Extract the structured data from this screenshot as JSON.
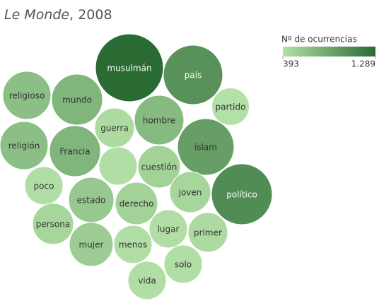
{
  "chart_data": {
    "type": "bubble",
    "title": [
      "Le Monde",
      ", 2008"
    ],
    "legend_title": "Nº de ocurrencias",
    "color_scale": [
      "#b3e0a6",
      "#2a6b34"
    ],
    "colorticks": [
      393,
      {
        "value": 1289,
        "label": "1.289"
      }
    ],
    "categories": [
      "musulmán",
      "país",
      "religioso",
      "mundo",
      "partido",
      "guerra",
      "hombre",
      "islam",
      "religión",
      "Francia",
      null,
      "cuestión",
      "político",
      "poco",
      "estado",
      "derecho",
      "joven",
      "persona",
      "lugar",
      "primer",
      "mujer",
      "menos",
      "solo",
      "vida"
    ],
    "values": [
      1289,
      987,
      647,
      725,
      393,
      439,
      685,
      895,
      647,
      725,
      409,
      503,
      1034,
      409,
      573,
      503,
      470,
      470,
      409,
      439,
      538,
      409,
      409,
      409
    ]
  }
}
